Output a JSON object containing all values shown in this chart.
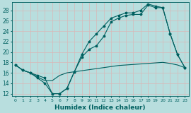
{
  "background_color": "#b8dede",
  "grid_color": "#d8b8b8",
  "line_color": "#006060",
  "xlabel": "Humidex (Indice chaleur)",
  "xlim": [
    -0.5,
    23.5
  ],
  "ylim": [
    11.5,
    29.5
  ],
  "yticks": [
    12,
    14,
    16,
    18,
    20,
    22,
    24,
    26,
    28
  ],
  "xticks": [
    0,
    1,
    2,
    3,
    4,
    5,
    6,
    7,
    8,
    9,
    10,
    11,
    12,
    13,
    14,
    15,
    16,
    17,
    18,
    19,
    20,
    21,
    22,
    23
  ],
  "series1_x": [
    0,
    1,
    2,
    3,
    4,
    5,
    6,
    7,
    8,
    9,
    10,
    11,
    12,
    13,
    14,
    15,
    16,
    17,
    18,
    19,
    20,
    21,
    22,
    23
  ],
  "series1_y": [
    17.5,
    16.5,
    16.0,
    15.5,
    15.0,
    12.0,
    12.0,
    13.0,
    16.2,
    19.0,
    20.5,
    21.2,
    23.0,
    25.8,
    26.5,
    27.0,
    27.2,
    27.2,
    29.0,
    28.5,
    28.5,
    23.5,
    19.5,
    17.0
  ],
  "series2_x": [
    0,
    1,
    2,
    3,
    4,
    5,
    6,
    7,
    8,
    9,
    10,
    11,
    12,
    13,
    14,
    15,
    16,
    17,
    18,
    19,
    20,
    21,
    22,
    23
  ],
  "series2_y": [
    17.5,
    16.5,
    16.0,
    15.2,
    14.5,
    14.5,
    15.5,
    16.0,
    16.2,
    16.4,
    16.6,
    16.8,
    17.0,
    17.2,
    17.4,
    17.5,
    17.6,
    17.7,
    17.8,
    17.9,
    18.0,
    17.8,
    17.5,
    17.0
  ],
  "series3_x": [
    0,
    1,
    2,
    3,
    4,
    5,
    6,
    7,
    8,
    9,
    10,
    11,
    12,
    13,
    14,
    15,
    16,
    17,
    18,
    19,
    20,
    21,
    22,
    23
  ],
  "series3_y": [
    17.5,
    16.5,
    16.0,
    15.0,
    14.0,
    12.0,
    12.0,
    13.0,
    16.2,
    19.5,
    22.0,
    23.5,
    25.0,
    26.5,
    27.0,
    27.5,
    27.5,
    28.0,
    29.2,
    28.8,
    28.5,
    23.5,
    19.5,
    17.0
  ]
}
